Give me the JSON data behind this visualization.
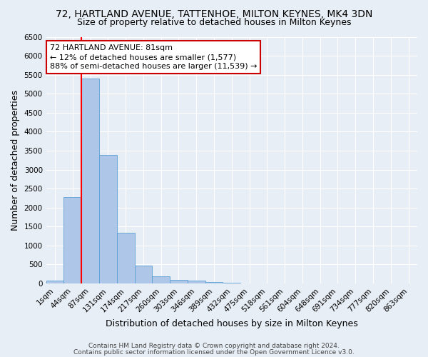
{
  "title1": "72, HARTLAND AVENUE, TATTENHOE, MILTON KEYNES, MK4 3DN",
  "title2": "Size of property relative to detached houses in Milton Keynes",
  "xlabel": "Distribution of detached houses by size in Milton Keynes",
  "ylabel": "Number of detached properties",
  "footer1": "Contains HM Land Registry data © Crown copyright and database right 2024.",
  "footer2": "Contains public sector information licensed under the Open Government Licence v3.0.",
  "categories": [
    "1sqm",
    "44sqm",
    "87sqm",
    "131sqm",
    "174sqm",
    "217sqm",
    "260sqm",
    "303sqm",
    "346sqm",
    "389sqm",
    "432sqm",
    "475sqm",
    "518sqm",
    "561sqm",
    "604sqm",
    "648sqm",
    "691sqm",
    "734sqm",
    "777sqm",
    "820sqm",
    "863sqm"
  ],
  "values": [
    75,
    2280,
    5400,
    3380,
    1330,
    470,
    195,
    85,
    65,
    30,
    25,
    5,
    0,
    0,
    0,
    0,
    0,
    0,
    0,
    0,
    0
  ],
  "bar_color": "#aec6e8",
  "bar_edge_color": "#5a9fd4",
  "red_line_index": 2,
  "annotation_title": "72 HARTLAND AVENUE: 81sqm",
  "annotation_line1": "← 12% of detached houses are smaller (1,577)",
  "annotation_line2": "88% of semi-detached houses are larger (11,539) →",
  "annotation_box_facecolor": "#ffffff",
  "annotation_box_edgecolor": "#cc0000",
  "ylim": [
    0,
    6500
  ],
  "yticks": [
    0,
    500,
    1000,
    1500,
    2000,
    2500,
    3000,
    3500,
    4000,
    4500,
    5000,
    5500,
    6000,
    6500
  ],
  "bg_color": "#e8eef5",
  "grid_color": "#ffffff",
  "title_fontsize": 10,
  "subtitle_fontsize": 9,
  "axis_label_fontsize": 9,
  "tick_fontsize": 7.5,
  "footer_fontsize": 6.5,
  "annotation_fontsize": 8
}
